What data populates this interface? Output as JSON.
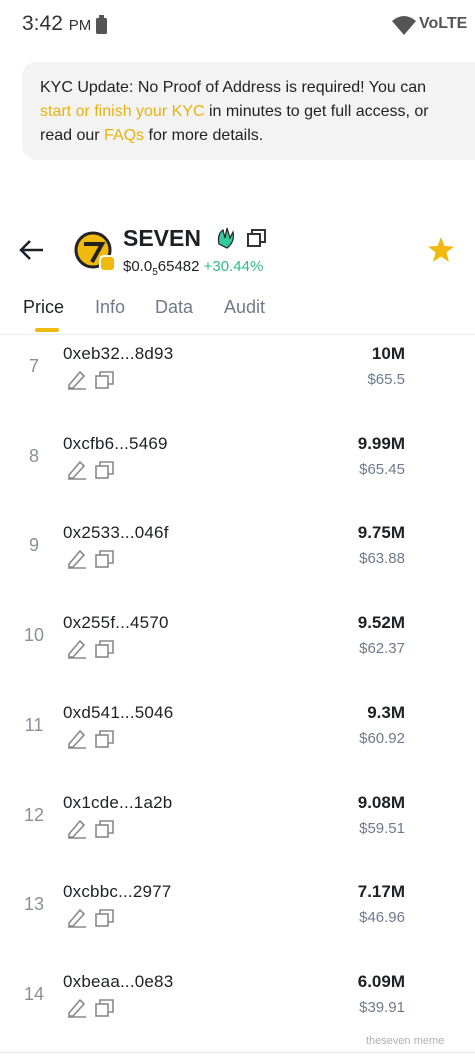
{
  "status_bar": {
    "time": "3:42",
    "ampm": "PM",
    "network": "VoLTE"
  },
  "banner": {
    "text_1": "KYC Update: No Proof of Address is required!   You can",
    "link_1": "start or finish your KYC",
    "text_2": " in minutes to get full access, or",
    "text_3": "read our ",
    "link_2": "FAQs",
    "text_4": " for more details."
  },
  "token": {
    "name": "SEVEN",
    "price_prefix": "$0.0",
    "price_zeros": "5",
    "price_digits": "65482",
    "change": "+30.44%"
  },
  "tabs": [
    "Price",
    "Info",
    "Data",
    "Audit"
  ],
  "holders": [
    {
      "rank": "7",
      "address": "0xeb32...8d93",
      "amount": "10M",
      "usd": "$65.5"
    },
    {
      "rank": "8",
      "address": "0xcfb6...5469",
      "amount": "9.99M",
      "usd": "$65.45"
    },
    {
      "rank": "9",
      "address": "0x2533...046f",
      "amount": "9.75M",
      "usd": "$63.88"
    },
    {
      "rank": "10",
      "address": "0x255f...4570",
      "amount": "9.52M",
      "usd": "$62.37"
    },
    {
      "rank": "11",
      "address": "0xd541...5046",
      "amount": "9.3M",
      "usd": "$60.92"
    },
    {
      "rank": "12",
      "address": "0x1cde...1a2b",
      "amount": "9.08M",
      "usd": "$59.51"
    },
    {
      "rank": "13",
      "address": "0xcbbc...2977",
      "amount": "7.17M",
      "usd": "$46.96"
    },
    {
      "rank": "14",
      "address": "0xbeaa...0e83",
      "amount": "6.09M",
      "usd": "$39.91"
    }
  ],
  "watermark": "theseven meme"
}
